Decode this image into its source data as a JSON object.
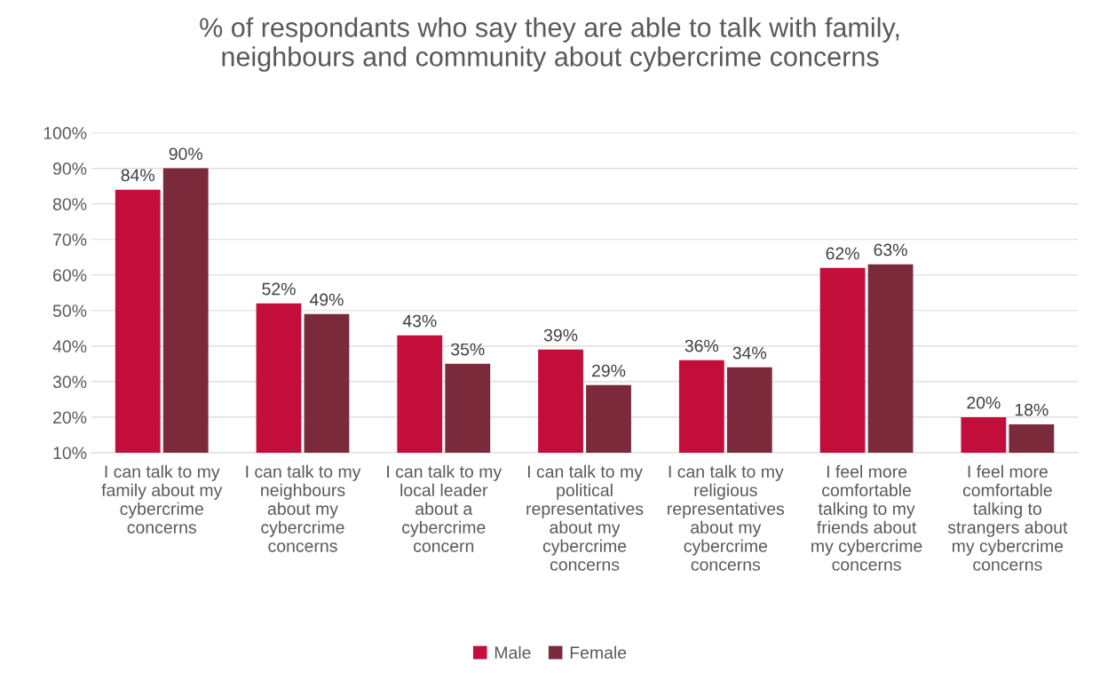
{
  "chart_data": {
    "type": "bar",
    "title": "% of respondants who say they are able to talk with family,\nneighbours and community about cybercrime concerns",
    "categories": [
      "I can talk to my\nfamily about my\ncybercrime\nconcerns",
      "I can talk to my\nneighbours\nabout my\ncybercrime\nconcerns",
      "I can talk to my\nlocal leader\nabout a\ncybercrime\nconcern",
      "I can talk to my\npolitical\nrepresentatives\nabout my\ncybercrime\nconcerns",
      "I can talk to my\nreligious\nrepresentatives\nabout my\ncybercrime\nconcerns",
      "I feel more\ncomfortable\ntalking to my\nfriends about\nmy cybercrime\nconcerns",
      "I feel more\ncomfortable\ntalking to\nstrangers about\nmy cybercrime\nconcerns"
    ],
    "series": [
      {
        "name": "Male",
        "color": "#c30d3a",
        "values": [
          84,
          52,
          43,
          39,
          36,
          62,
          20
        ],
        "value_labels": [
          "84%",
          "52%",
          "43%",
          "39%",
          "36%",
          "62%",
          "20%"
        ]
      },
      {
        "name": "Female",
        "color": "#7b2a3c",
        "values": [
          90,
          49,
          35,
          29,
          34,
          63,
          18
        ],
        "value_labels": [
          "90%",
          "49%",
          "35%",
          "29%",
          "34%",
          "63%",
          "18%"
        ]
      }
    ],
    "ylim": [
      10,
      100
    ],
    "yticks": [
      {
        "value": 10,
        "label": "10%"
      },
      {
        "value": 20,
        "label": "20%"
      },
      {
        "value": 30,
        "label": "30%"
      },
      {
        "value": 40,
        "label": "40%"
      },
      {
        "value": 50,
        "label": "50%"
      },
      {
        "value": 60,
        "label": "60%"
      },
      {
        "value": 70,
        "label": "70%"
      },
      {
        "value": 80,
        "label": "80%"
      },
      {
        "value": 90,
        "label": "90%"
      },
      {
        "value": 100,
        "label": "100%"
      }
    ],
    "grid": "y",
    "legend": "bottom"
  }
}
